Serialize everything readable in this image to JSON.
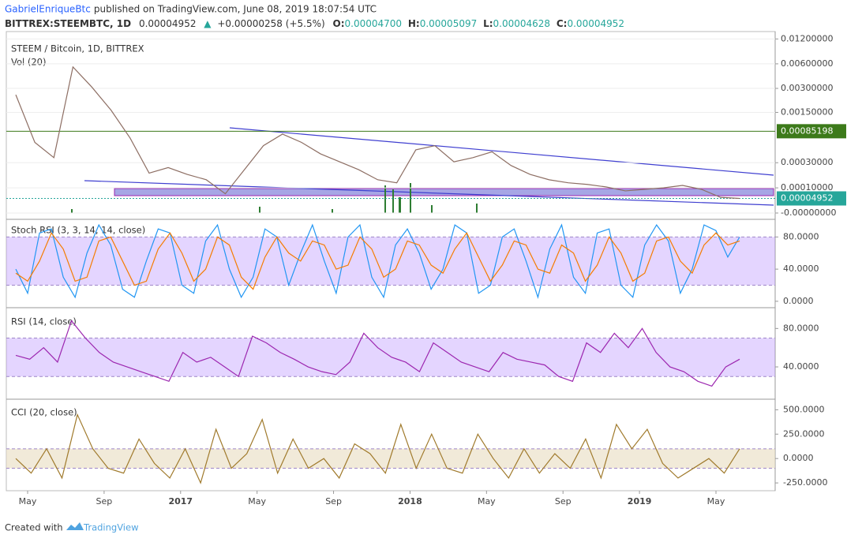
{
  "header": {
    "author": "GabrielEnriqueBtc",
    "published": "published on TradingView.com, June 08, 2019 18:07:54 UTC",
    "symbol": "BITTREX:STEEMBTC, 1D",
    "last": "0.00004952",
    "arrow": "▲",
    "change": "+0.00000258 (+5.5%)",
    "open_label": "O:",
    "open": "0.00004700",
    "high_label": "H:",
    "high": "0.00005097",
    "low_label": "L:",
    "low": "0.00004628",
    "close_label": "C:",
    "close": "0.00004952"
  },
  "price_pane": {
    "title": "STEEM / Bitcoin, 1D, BITTREX",
    "volume_label": "Vol (20)",
    "ylim": [
      0,
      0.012
    ],
    "yticks": [
      {
        "value": 0.012,
        "label": "0.01200000"
      },
      {
        "value": 0.006,
        "label": "0.00600000"
      },
      {
        "value": 0.003,
        "label": "0.00300000"
      },
      {
        "value": 0.0015,
        "label": "0.00150000"
      },
      {
        "value": 0.0003,
        "label": "0.00030000"
      },
      {
        "value": 0.0001,
        "label": "0.00010000"
      },
      {
        "value": 0,
        "label": "-0.00000000"
      }
    ],
    "level": {
      "value": 0.00085198,
      "label": "0.00085198",
      "color": "#3c7a1a"
    },
    "last_price": {
      "value": 4.952e-05,
      "label": "0.00004952",
      "color": "#26a69a"
    },
    "closes": [
      0.0025,
      0.0006,
      0.00036,
      0.0055,
      0.0031,
      0.0016,
      0.00069,
      0.0002,
      0.00025,
      0.00019,
      0.00015,
      7e-05,
      0.00023,
      0.00054,
      0.00078,
      0.0006,
      0.00041,
      0.00031,
      0.00023,
      0.00015,
      0.00013,
      0.00047,
      0.00054,
      0.00031,
      0.00036,
      0.00044,
      0.00027,
      0.00019,
      0.00015,
      0.00013,
      0.00012,
      0.000105,
      8.4e-05,
      9.2e-05,
      0.0001,
      0.000114,
      9.2e-05,
      5.4e-05,
      4.952e-05
    ]
  },
  "stoch_pane": {
    "title": "Stoch RSI (3, 3, 14, 14, close)",
    "ylim": [
      -6,
      100
    ],
    "yticks": [
      {
        "value": 80,
        "label": "80.0000"
      },
      {
        "value": 40,
        "label": "40.0000"
      },
      {
        "value": 0,
        "label": "0.0000"
      }
    ],
    "band": [
      20,
      80
    ],
    "series": [
      {
        "name": "K",
        "color": "#2196f3",
        "values": [
          40,
          10,
          85,
          90,
          30,
          5,
          60,
          95,
          70,
          15,
          5,
          50,
          90,
          85,
          20,
          10,
          75,
          95,
          40,
          5,
          30,
          90,
          80,
          20,
          60,
          95,
          50,
          10,
          80,
          95,
          30,
          5,
          70,
          90,
          60,
          15,
          40,
          95,
          85,
          10,
          20,
          80,
          90,
          50,
          5,
          65,
          95,
          30,
          10,
          85,
          90,
          20,
          5,
          70,
          95,
          75,
          10,
          40,
          95,
          88,
          55,
          80
        ]
      },
      {
        "name": "D",
        "color": "#f57c00",
        "values": [
          35,
          25,
          50,
          85,
          65,
          25,
          30,
          75,
          80,
          50,
          20,
          25,
          65,
          85,
          60,
          25,
          40,
          80,
          70,
          30,
          15,
          55,
          80,
          60,
          50,
          75,
          70,
          40,
          45,
          80,
          65,
          30,
          40,
          75,
          70,
          45,
          35,
          65,
          85,
          55,
          25,
          45,
          75,
          70,
          40,
          35,
          70,
          60,
          25,
          45,
          80,
          60,
          25,
          35,
          75,
          80,
          50,
          35,
          70,
          85,
          70,
          75
        ]
      }
    ]
  },
  "rsi_pane": {
    "title": "RSI (14, close)",
    "ylim": [
      8,
      100
    ],
    "yticks": [
      {
        "value": 80,
        "label": "80.0000"
      },
      {
        "value": 40,
        "label": "40.0000"
      }
    ],
    "band": [
      30,
      70
    ],
    "color": "#9c27b0",
    "values": [
      52,
      48,
      60,
      45,
      88,
      70,
      55,
      45,
      40,
      35,
      30,
      25,
      55,
      45,
      50,
      40,
      30,
      72,
      65,
      55,
      48,
      40,
      35,
      32,
      45,
      75,
      60,
      50,
      45,
      35,
      65,
      55,
      45,
      40,
      35,
      55,
      48,
      45,
      42,
      30,
      25,
      65,
      55,
      75,
      60,
      80,
      55,
      40,
      35,
      25,
      20,
      40,
      48
    ]
  },
  "cci_pane": {
    "title": "CCI (20, close)",
    "ylim": [
      -330,
      600
    ],
    "yticks": [
      {
        "value": 500,
        "label": "500.0000"
      },
      {
        "value": 250,
        "label": "250.0000"
      },
      {
        "value": 0,
        "label": "0.0000"
      },
      {
        "value": -250,
        "label": "-250.0000"
      }
    ],
    "band": [
      -100,
      100
    ],
    "color": "#a07a2c",
    "values": [
      0,
      -150,
      100,
      -200,
      450,
      100,
      -100,
      -150,
      200,
      -50,
      -200,
      100,
      -250,
      300,
      -100,
      50,
      400,
      -150,
      200,
      -100,
      0,
      -200,
      150,
      50,
      -150,
      350,
      -100,
      250,
      -100,
      -150,
      250,
      0,
      -200,
      100,
      -150,
      50,
      -100,
      200,
      -200,
      350,
      100,
      300,
      -50,
      -200,
      -100,
      0,
      -150,
      100
    ]
  },
  "x_axis": {
    "labels": [
      "May",
      "Sep",
      "2017",
      "May",
      "Sep",
      "2018",
      "May",
      "Sep",
      "2019",
      "May"
    ]
  },
  "footer": {
    "created": "Created with",
    "brand": "TradingView"
  }
}
